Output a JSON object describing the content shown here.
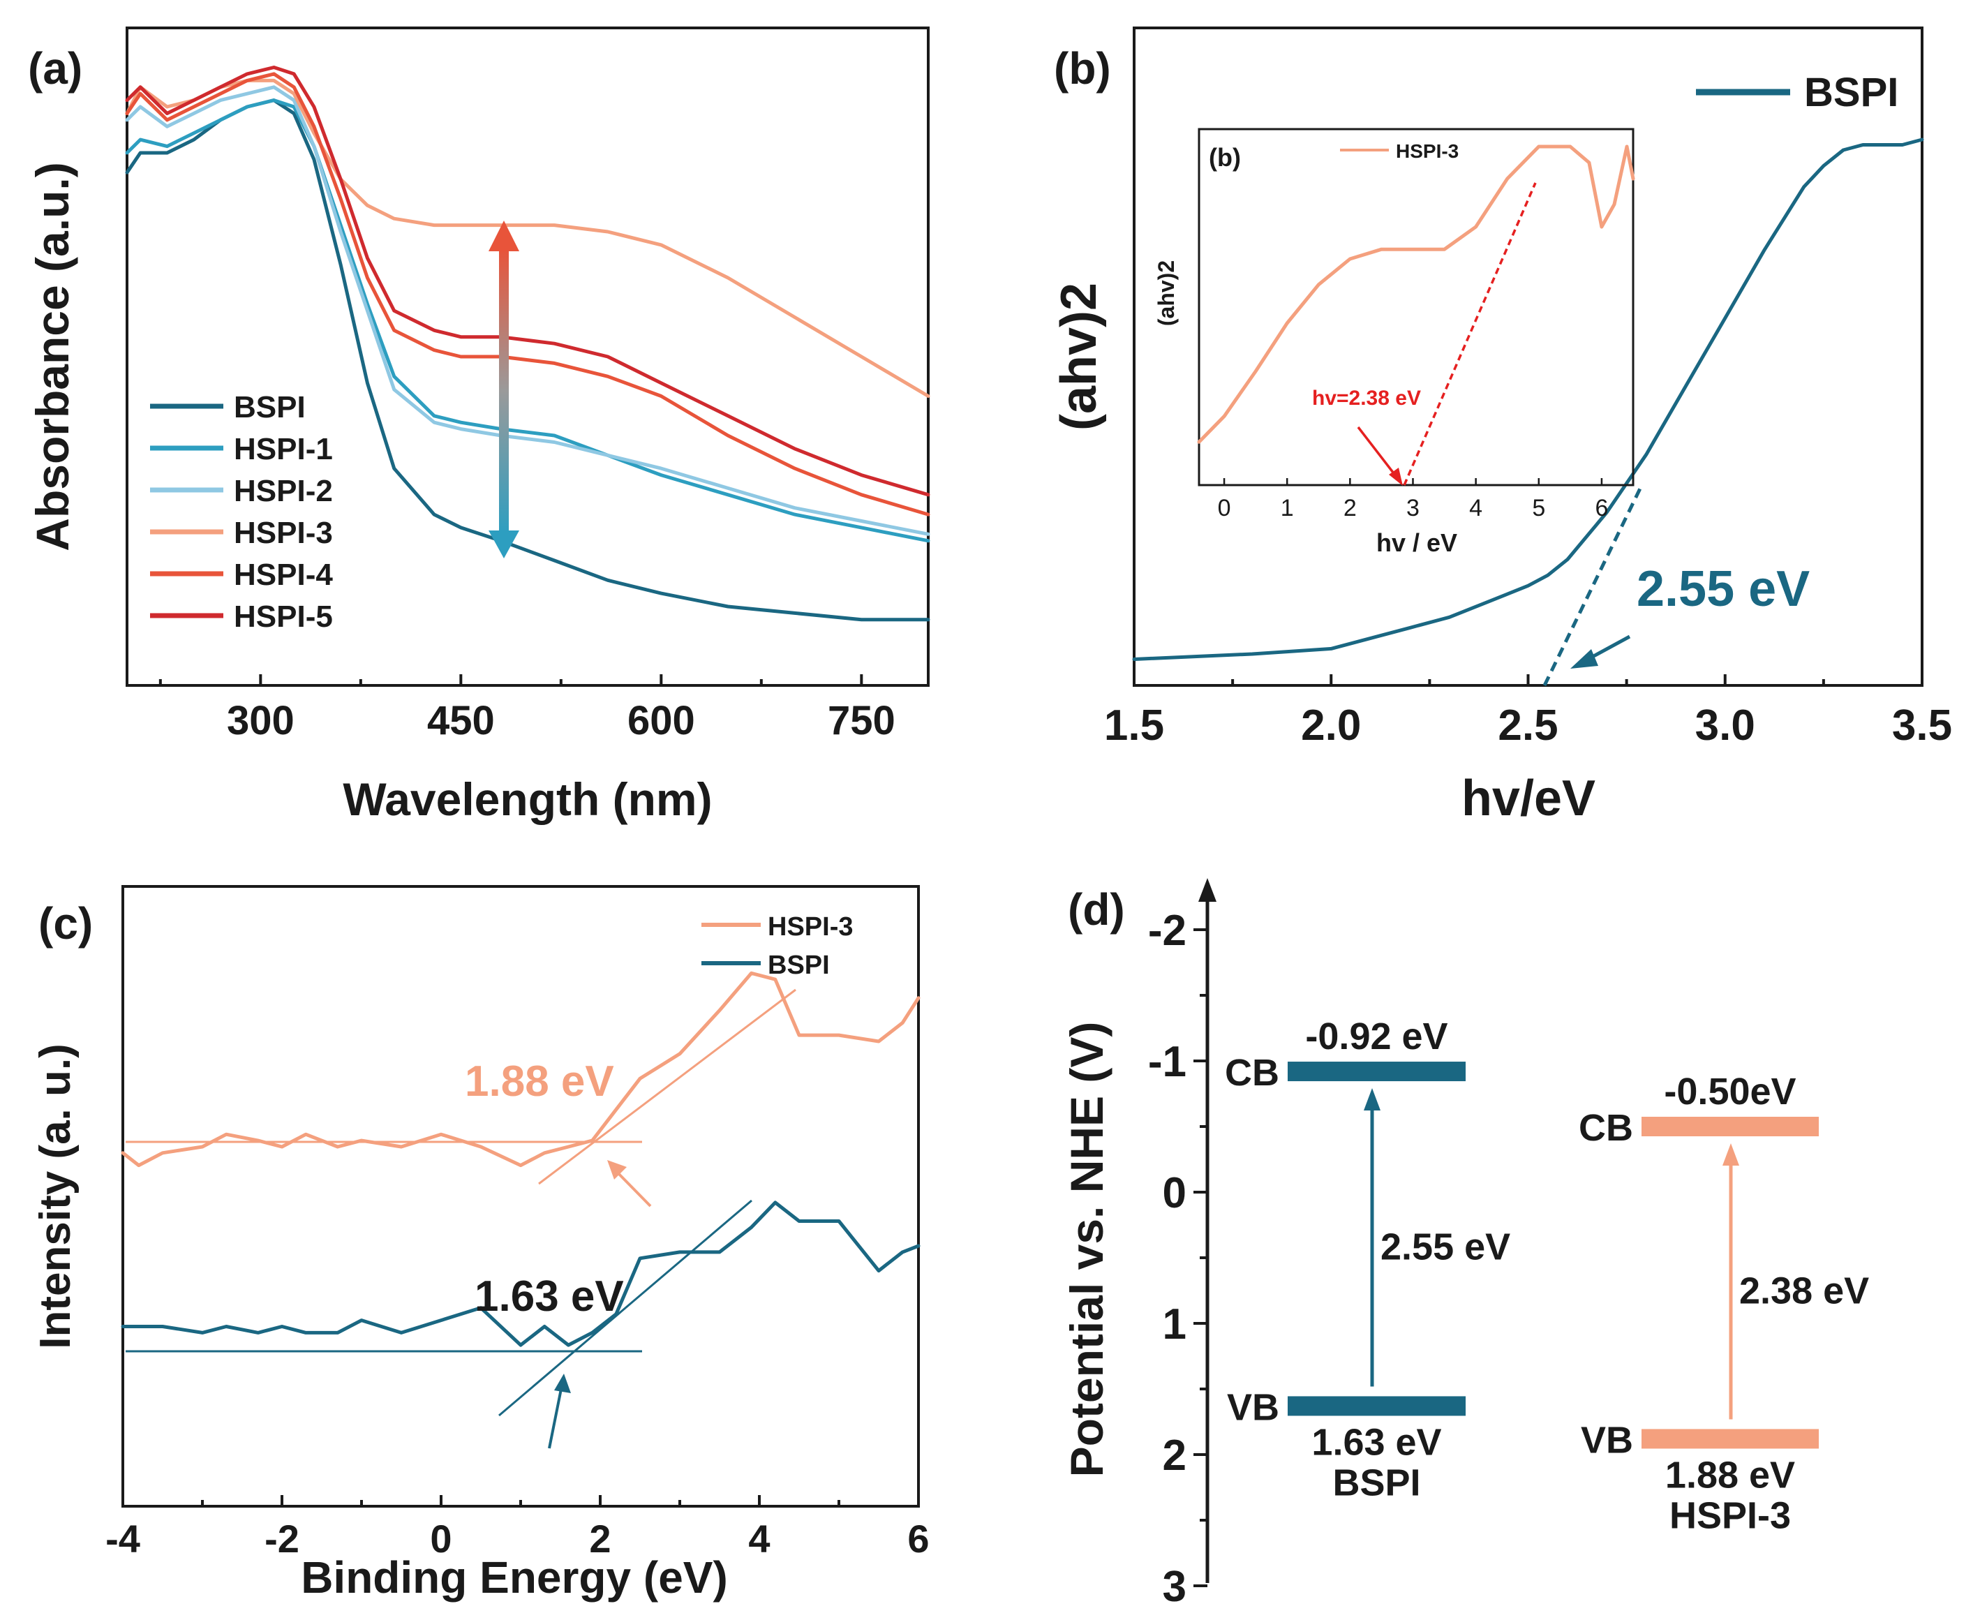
{
  "colors": {
    "BSPI": "#1a6782",
    "HSPI-1": "#2d9ec0",
    "HSPI-2": "#8fc8e3",
    "HSPI-3": "#f4a07e",
    "HSPI-4": "#e8543a",
    "HSPI-5": "#cf2a2e",
    "red_annotation": "#e52020"
  },
  "chart_data": [
    {
      "panel": "(a)",
      "type": "line",
      "title": "",
      "xlabel": "Wavelength (nm)",
      "ylabel": "Absorbance (a.u.)",
      "xlim": [
        200,
        800
      ],
      "ylim": [
        0,
        1.0
      ],
      "x_ticks": [
        "300",
        "450",
        "600",
        "750"
      ],
      "y_ticks": [],
      "legend": [
        "BSPI",
        "HSPI-1",
        "HSPI-2",
        "HSPI-3",
        "HSPI-4",
        "HSPI-5"
      ],
      "legend_position": "center-left",
      "x": [
        200,
        210,
        230,
        250,
        270,
        290,
        310,
        325,
        340,
        360,
        380,
        400,
        430,
        450,
        480,
        520,
        560,
        600,
        650,
        700,
        750,
        800
      ],
      "series": [
        {
          "name": "BSPI",
          "values": [
            0.78,
            0.81,
            0.81,
            0.83,
            0.86,
            0.88,
            0.89,
            0.87,
            0.8,
            0.64,
            0.46,
            0.33,
            0.26,
            0.24,
            0.22,
            0.19,
            0.16,
            0.14,
            0.12,
            0.11,
            0.1,
            0.1
          ]
        },
        {
          "name": "HSPI-1",
          "values": [
            0.81,
            0.83,
            0.82,
            0.84,
            0.86,
            0.88,
            0.89,
            0.88,
            0.82,
            0.7,
            0.58,
            0.47,
            0.41,
            0.4,
            0.39,
            0.38,
            0.35,
            0.32,
            0.29,
            0.26,
            0.24,
            0.22
          ]
        },
        {
          "name": "HSPI-2",
          "values": [
            0.86,
            0.88,
            0.85,
            0.87,
            0.89,
            0.9,
            0.91,
            0.89,
            0.82,
            0.69,
            0.57,
            0.45,
            0.4,
            0.39,
            0.38,
            0.37,
            0.35,
            0.33,
            0.3,
            0.27,
            0.25,
            0.23
          ]
        },
        {
          "name": "HSPI-3",
          "values": [
            0.87,
            0.91,
            0.88,
            0.89,
            0.91,
            0.92,
            0.92,
            0.9,
            0.84,
            0.77,
            0.73,
            0.71,
            0.7,
            0.7,
            0.7,
            0.7,
            0.69,
            0.67,
            0.62,
            0.56,
            0.5,
            0.44
          ]
        },
        {
          "name": "HSPI-4",
          "values": [
            0.87,
            0.9,
            0.86,
            0.88,
            0.9,
            0.92,
            0.93,
            0.91,
            0.85,
            0.74,
            0.62,
            0.54,
            0.51,
            0.5,
            0.5,
            0.49,
            0.47,
            0.44,
            0.38,
            0.33,
            0.29,
            0.26
          ]
        },
        {
          "name": "HSPI-5",
          "values": [
            0.89,
            0.91,
            0.87,
            0.89,
            0.91,
            0.93,
            0.94,
            0.93,
            0.88,
            0.77,
            0.65,
            0.57,
            0.54,
            0.53,
            0.53,
            0.52,
            0.5,
            0.46,
            0.41,
            0.36,
            0.32,
            0.29
          ]
        }
      ],
      "annotations": [
        "double-headed arrow at 480 nm between BSPI and HSPI-3"
      ]
    },
    {
      "panel": "(b)",
      "type": "line",
      "xlabel": "hv/eV",
      "ylabel": "(ahv)2",
      "xlim": [
        1.5,
        3.5
      ],
      "ylim": [
        0,
        1.0
      ],
      "x_ticks": [
        "1.5",
        "2.0",
        "2.5",
        "3.0",
        "3.5"
      ],
      "legend": [
        "BSPI"
      ],
      "legend_position": "top-right",
      "x": [
        1.5,
        1.8,
        2.0,
        2.1,
        2.2,
        2.3,
        2.4,
        2.5,
        2.55,
        2.6,
        2.7,
        2.8,
        2.9,
        3.0,
        3.1,
        3.2,
        3.25,
        3.3,
        3.35,
        3.4,
        3.45,
        3.5
      ],
      "series": [
        {
          "name": "BSPI",
          "values": [
            0.01,
            0.02,
            0.03,
            0.05,
            0.07,
            0.09,
            0.12,
            0.15,
            0.17,
            0.2,
            0.29,
            0.4,
            0.53,
            0.66,
            0.79,
            0.91,
            0.95,
            0.98,
            0.99,
            0.99,
            0.99,
            1.0
          ]
        }
      ],
      "annotations": [
        "2.55 eV"
      ],
      "inset": {
        "label": "(b)",
        "xlabel": "hv / eV",
        "ylabel": "(ahv)2",
        "xlim": [
          -0.4,
          6.5
        ],
        "x_ticks": [
          "0",
          "1",
          "2",
          "3",
          "4",
          "5",
          "6"
        ],
        "legend": [
          "HSPI-3"
        ],
        "annotation": "hv=2.38 eV",
        "x": [
          -0.4,
          0.0,
          0.5,
          1.0,
          1.5,
          2.0,
          2.5,
          3.0,
          3.5,
          4.0,
          4.5,
          5.0,
          5.5,
          5.8,
          6.0,
          6.2,
          6.4,
          6.5
        ],
        "values": [
          0.08,
          0.16,
          0.3,
          0.45,
          0.57,
          0.65,
          0.68,
          0.68,
          0.68,
          0.75,
          0.9,
          1.0,
          1.0,
          0.95,
          0.75,
          0.82,
          1.0,
          0.9
        ]
      }
    },
    {
      "panel": "(c)",
      "type": "line",
      "xlabel": "Binding Energy (eV)",
      "ylabel": "Intensity (a. u.)",
      "xlim": [
        -4,
        6
      ],
      "ylim": [
        0,
        1.0
      ],
      "x_ticks": [
        "-4",
        "-2",
        "0",
        "2",
        "4",
        "6"
      ],
      "legend": [
        "HSPI-3",
        "BSPI"
      ],
      "legend_position": "top-right",
      "x": [
        -4,
        -3.8,
        -3.5,
        -3,
        -2.7,
        -2.3,
        -2,
        -1.7,
        -1.3,
        -1,
        -0.5,
        0,
        0.5,
        1,
        1.3,
        1.6,
        1.9,
        2.2,
        2.5,
        3,
        3.5,
        3.9,
        4.2,
        4.5,
        5,
        5.5,
        5.8,
        6
      ],
      "series": [
        {
          "name": "HSPI-3",
          "values": [
            0.57,
            0.55,
            0.57,
            0.58,
            0.6,
            0.59,
            0.58,
            0.6,
            0.58,
            0.59,
            0.58,
            0.6,
            0.58,
            0.55,
            0.57,
            0.58,
            0.59,
            0.64,
            0.69,
            0.73,
            0.8,
            0.86,
            0.85,
            0.76,
            0.76,
            0.75,
            0.78,
            0.82
          ]
        },
        {
          "name": "BSPI",
          "values": [
            0.29,
            0.29,
            0.29,
            0.28,
            0.29,
            0.28,
            0.29,
            0.28,
            0.28,
            0.3,
            0.28,
            0.3,
            0.32,
            0.26,
            0.29,
            0.26,
            0.28,
            0.31,
            0.4,
            0.41,
            0.41,
            0.45,
            0.49,
            0.46,
            0.46,
            0.38,
            0.41,
            0.42
          ]
        }
      ],
      "annotations": [
        "1.88 eV",
        "1.63 eV"
      ]
    },
    {
      "panel": "(d)",
      "type": "diagram",
      "ylabel": "Potential vs. NHE (V)",
      "ylim": [
        -2.5,
        3
      ],
      "y_ticks": [
        "-2",
        "-1",
        "0",
        "1",
        "2",
        "3"
      ],
      "materials": [
        {
          "name": "BSPI",
          "CB": -0.92,
          "VB": 1.63,
          "CB_label": "-0.92 eV",
          "VB_label": "1.63 eV",
          "gap_label": "2.55 eV"
        },
        {
          "name": "HSPI-3",
          "CB": -0.5,
          "VB": 1.88,
          "CB_label": "-0.50eV",
          "VB_label": "1.88 eV",
          "gap_label": "2.38 eV"
        }
      ],
      "band_labels": {
        "cb": "CB",
        "vb": "VB"
      }
    }
  ]
}
